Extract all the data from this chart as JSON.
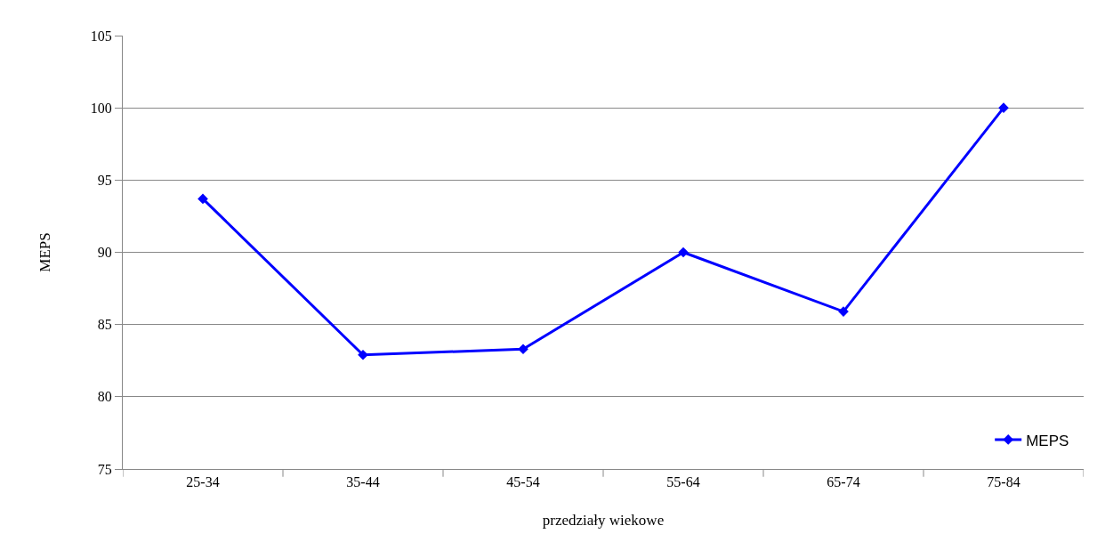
{
  "chart_data": {
    "type": "line",
    "xlabel": "przedziały wiekowe",
    "ylabel": "MEPS",
    "categories": [
      "25-34",
      "35-44",
      "45-54",
      "55-64",
      "65-74",
      "75-84"
    ],
    "series": [
      {
        "name": "MEPS",
        "color": "#0000ff",
        "values": [
          93.7,
          82.9,
          83.3,
          90,
          85.9,
          100
        ]
      }
    ],
    "ylim": [
      75,
      105
    ],
    "yticks": [
      75,
      80,
      85,
      90,
      95,
      100,
      105
    ],
    "grid": "y",
    "legend": "bottom right",
    "marker": "diamond",
    "line_style": "solid"
  }
}
